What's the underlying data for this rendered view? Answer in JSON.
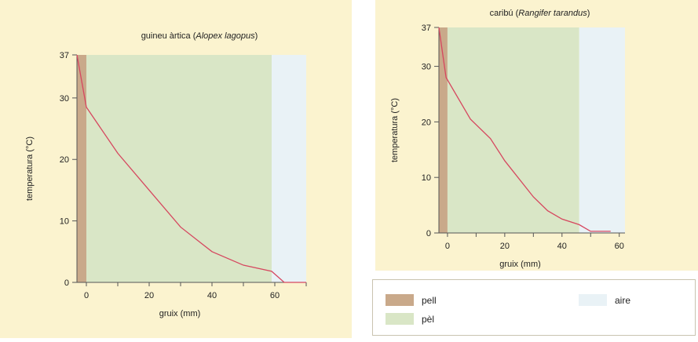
{
  "colors": {
    "panel_bg": "#fbf3cf",
    "pell": "#c9a98a",
    "pel": "#d9e6c6",
    "aire": "#e9f2f6",
    "line": "#d6475f",
    "axis": "#555555"
  },
  "legend": {
    "items": [
      {
        "label": "pell",
        "color": "#c9a98a"
      },
      {
        "label": "pèl",
        "color": "#d9e6c6"
      },
      {
        "label": "aire",
        "color": "#e9f2f6"
      }
    ]
  },
  "chart_data": [
    {
      "type": "line",
      "title": "guineu àrtica",
      "title_species": "Alopex lagopus",
      "xlabel": "gruix (mm)",
      "ylabel": "temperatura (°C)",
      "xlim": [
        -3,
        70
      ],
      "ylim": [
        0,
        37
      ],
      "xticks": [
        0,
        20,
        40,
        60
      ],
      "yticks": [
        0,
        10,
        20,
        30,
        37
      ],
      "zones": [
        {
          "name": "pell",
          "from": -3,
          "to": 0
        },
        {
          "name": "pèl",
          "from": 0,
          "to": 59
        },
        {
          "name": "aire",
          "from": 59,
          "to": 70
        }
      ],
      "series": [
        {
          "x": [
            -3,
            0,
            10,
            20,
            30,
            40,
            50,
            59,
            63,
            70
          ],
          "y": [
            37,
            28.5,
            21,
            15,
            9,
            5,
            2.8,
            1.8,
            0,
            0
          ]
        }
      ]
    },
    {
      "type": "line",
      "title": "caribú",
      "title_species": "Rangifer tarandus",
      "xlabel": "gruix (mm)",
      "ylabel": "temperatura (°C)",
      "xlim": [
        -3,
        62
      ],
      "ylim": [
        0,
        37
      ],
      "xticks": [
        0,
        20,
        40,
        60
      ],
      "yticks": [
        0,
        10,
        20,
        30,
        37
      ],
      "zones": [
        {
          "name": "pell",
          "from": -3,
          "to": 0
        },
        {
          "name": "pèl",
          "from": 0,
          "to": 46
        },
        {
          "name": "aire",
          "from": 46,
          "to": 62
        }
      ],
      "series": [
        {
          "x": [
            -3,
            -0.5,
            8,
            15,
            20,
            30,
            35,
            40,
            46,
            50,
            57
          ],
          "y": [
            37,
            28,
            20.5,
            17,
            13,
            6.5,
            4,
            2.5,
            1.5,
            0.3,
            0.3
          ]
        }
      ]
    }
  ]
}
